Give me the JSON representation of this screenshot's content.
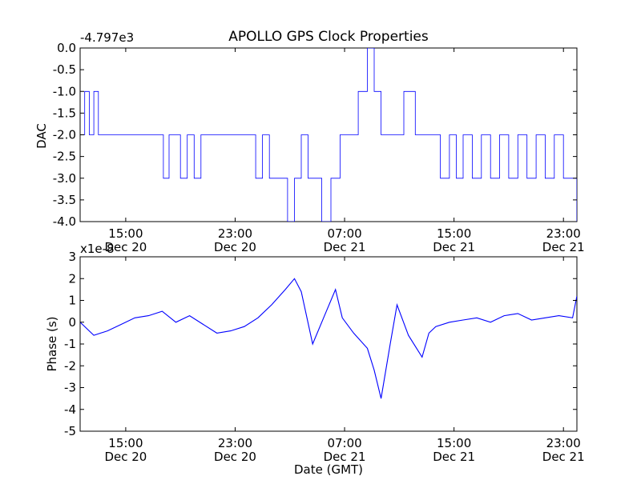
{
  "title": "APOLLO GPS Clock Properties",
  "chart_data": [
    {
      "type": "line",
      "name": "dac",
      "ylabel": "DAC",
      "offset_label": "-4.797e3",
      "x_ticks": [
        {
          "time": "15:00",
          "date": "Dec 20"
        },
        {
          "time": "23:00",
          "date": "Dec 20"
        },
        {
          "time": "07:00",
          "date": "Dec 21"
        },
        {
          "time": "15:00",
          "date": "Dec 21"
        },
        {
          "time": "23:00",
          "date": "Dec 21"
        }
      ],
      "y_ticks": [
        "0.0",
        "-0.5",
        "-1.0",
        "-1.5",
        "-2.0",
        "-2.5",
        "-3.0",
        "-3.5",
        "-4.0"
      ],
      "ylim": [
        -4.0,
        0.0
      ],
      "line_color": "#0000ff",
      "series": [
        {
          "x": [
            "Dec 20 11:40",
            "Dec 20 12:00",
            "Dec 20 12:20",
            "Dec 20 12:40",
            "Dec 20 13:00",
            "Dec 20 13:40",
            "Dec 20 17:30",
            "Dec 20 17:45",
            "Dec 20 18:10",
            "Dec 20 19:00",
            "Dec 20 19:30",
            "Dec 20 20:00",
            "Dec 20 20:30",
            "Dec 20 21:00",
            "Dec 21 00:30",
            "Dec 21 01:00",
            "Dec 21 01:30",
            "Dec 21 02:00",
            "Dec 21 02:50",
            "Dec 21 03:20",
            "Dec 21 03:50",
            "Dec 21 04:20",
            "Dec 21 05:20",
            "Dec 21 06:00",
            "Dec 21 06:40",
            "Dec 21 07:30",
            "Dec 21 08:00",
            "Dec 21 08:40",
            "Dec 21 09:10",
            "Dec 21 09:40",
            "Dec 21 10:10",
            "Dec 21 10:40",
            "Dec 21 11:20",
            "Dec 21 12:10",
            "Dec 21 12:40",
            "Dec 21 13:20",
            "Dec 21 14:00",
            "Dec 21 14:40",
            "Dec 21 15:10",
            "Dec 21 15:40",
            "Dec 21 16:20",
            "Dec 21 17:00",
            "Dec 21 17:40",
            "Dec 21 18:20",
            "Dec 21 19:00",
            "Dec 21 19:40",
            "Dec 21 20:20",
            "Dec 21 21:00",
            "Dec 21 21:40",
            "Dec 21 22:20",
            "Dec 21 23:00",
            "Dec 21 23:40",
            "Dec 21 23:59"
          ],
          "y": [
            -2.0,
            -1.0,
            -2.0,
            -1.0,
            -2.0,
            -2.0,
            -2.0,
            -3.0,
            -2.0,
            -3.0,
            -2.0,
            -3.0,
            -2.0,
            -2.0,
            -3.0,
            -2.0,
            -3.0,
            -3.0,
            -4.0,
            -3.0,
            -2.0,
            -3.0,
            -4.0,
            -3.0,
            -2.0,
            -2.0,
            -1.0,
            0.0,
            -1.0,
            -2.0,
            -2.0,
            -2.0,
            -1.0,
            -2.0,
            -2.0,
            -2.0,
            -3.0,
            -2.0,
            -3.0,
            -2.0,
            -3.0,
            -2.0,
            -3.0,
            -2.0,
            -3.0,
            -2.0,
            -3.0,
            -2.0,
            -3.0,
            -2.0,
            -3.0,
            -3.0,
            -4.0
          ]
        }
      ]
    },
    {
      "type": "line",
      "name": "phase",
      "ylabel": "Phase (s)",
      "xlabel": "Date (GMT)",
      "offset_label": "x1e-8",
      "x_ticks": [
        {
          "time": "15:00",
          "date": "Dec 20"
        },
        {
          "time": "23:00",
          "date": "Dec 20"
        },
        {
          "time": "07:00",
          "date": "Dec 21"
        },
        {
          "time": "15:00",
          "date": "Dec 21"
        },
        {
          "time": "23:00",
          "date": "Dec 21"
        }
      ],
      "y_ticks": [
        "3",
        "2",
        "1",
        "0",
        "-1",
        "-2",
        "-3",
        "-4",
        "-5"
      ],
      "ylim": [
        -5,
        3
      ],
      "line_color": "#0000ff",
      "series": [
        {
          "x": [
            "Dec 20 11:40",
            "Dec 20 12:40",
            "Dec 20 13:40",
            "Dec 20 14:40",
            "Dec 20 15:40",
            "Dec 20 16:40",
            "Dec 20 17:40",
            "Dec 20 18:40",
            "Dec 20 19:40",
            "Dec 20 20:40",
            "Dec 20 21:40",
            "Dec 20 22:40",
            "Dec 20 23:40",
            "Dec 21 00:40",
            "Dec 21 01:40",
            "Dec 21 02:40",
            "Dec 21 03:20",
            "Dec 21 03:50",
            "Dec 21 04:40",
            "Dec 21 05:40",
            "Dec 21 06:20",
            "Dec 21 06:50",
            "Dec 21 07:40",
            "Dec 21 08:40",
            "Dec 21 09:10",
            "Dec 21 09:40",
            "Dec 21 10:20",
            "Dec 21 10:50",
            "Dec 21 11:40",
            "Dec 21 12:40",
            "Dec 21 13:10",
            "Dec 21 13:40",
            "Dec 21 14:40",
            "Dec 21 15:40",
            "Dec 21 16:40",
            "Dec 21 17:40",
            "Dec 21 18:40",
            "Dec 21 19:40",
            "Dec 21 20:40",
            "Dec 21 21:40",
            "Dec 21 22:40",
            "Dec 21 23:40",
            "Dec 21 23:59"
          ],
          "y": [
            0.0,
            -0.6,
            -0.4,
            -0.1,
            0.2,
            0.3,
            0.5,
            0.0,
            0.3,
            -0.1,
            -0.5,
            -0.4,
            -0.2,
            0.2,
            0.8,
            1.5,
            2.0,
            1.4,
            -1.0,
            0.5,
            1.5,
            0.2,
            -0.5,
            -1.2,
            -2.2,
            -3.5,
            -1.0,
            0.8,
            -0.6,
            -1.6,
            -0.5,
            -0.2,
            0.0,
            0.1,
            0.2,
            0.0,
            0.3,
            0.4,
            0.1,
            0.2,
            0.3,
            0.2,
            1.2
          ]
        }
      ]
    }
  ]
}
